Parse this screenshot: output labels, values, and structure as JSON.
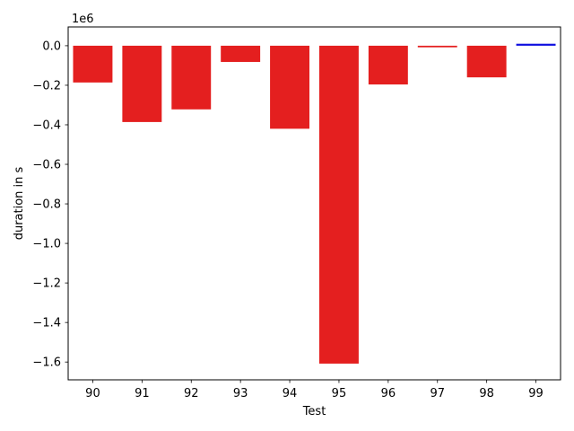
{
  "chart_data": {
    "type": "bar",
    "title": "",
    "xlabel": "Test",
    "ylabel": "duration in s",
    "y_offset_label": "1e6",
    "y_scale": 1000000,
    "categories": [
      "90",
      "91",
      "92",
      "93",
      "94",
      "95",
      "96",
      "97",
      "98",
      "99"
    ],
    "values": [
      -186000,
      -386000,
      -322000,
      -82000,
      -420000,
      -1608000,
      -196000,
      -8000,
      -160000,
      10000
    ],
    "bar_colors": [
      "#e41f1f",
      "#e41f1f",
      "#e41f1f",
      "#e41f1f",
      "#e41f1f",
      "#e41f1f",
      "#e41f1f",
      "#e41f1f",
      "#e41f1f",
      "#1010e0"
    ],
    "ylim": [
      -1690000,
      95000
    ],
    "yticks": [
      0.0,
      -0.2,
      -0.4,
      -0.6,
      -0.8,
      -1.0,
      -1.2,
      -1.4,
      -1.6
    ],
    "ytick_labels": [
      "0.0",
      "−0.2",
      "−0.4",
      "−0.6",
      "−0.8",
      "−1.0",
      "−1.2",
      "−1.4",
      "−1.6"
    ],
    "grid": false,
    "legend": "none"
  }
}
